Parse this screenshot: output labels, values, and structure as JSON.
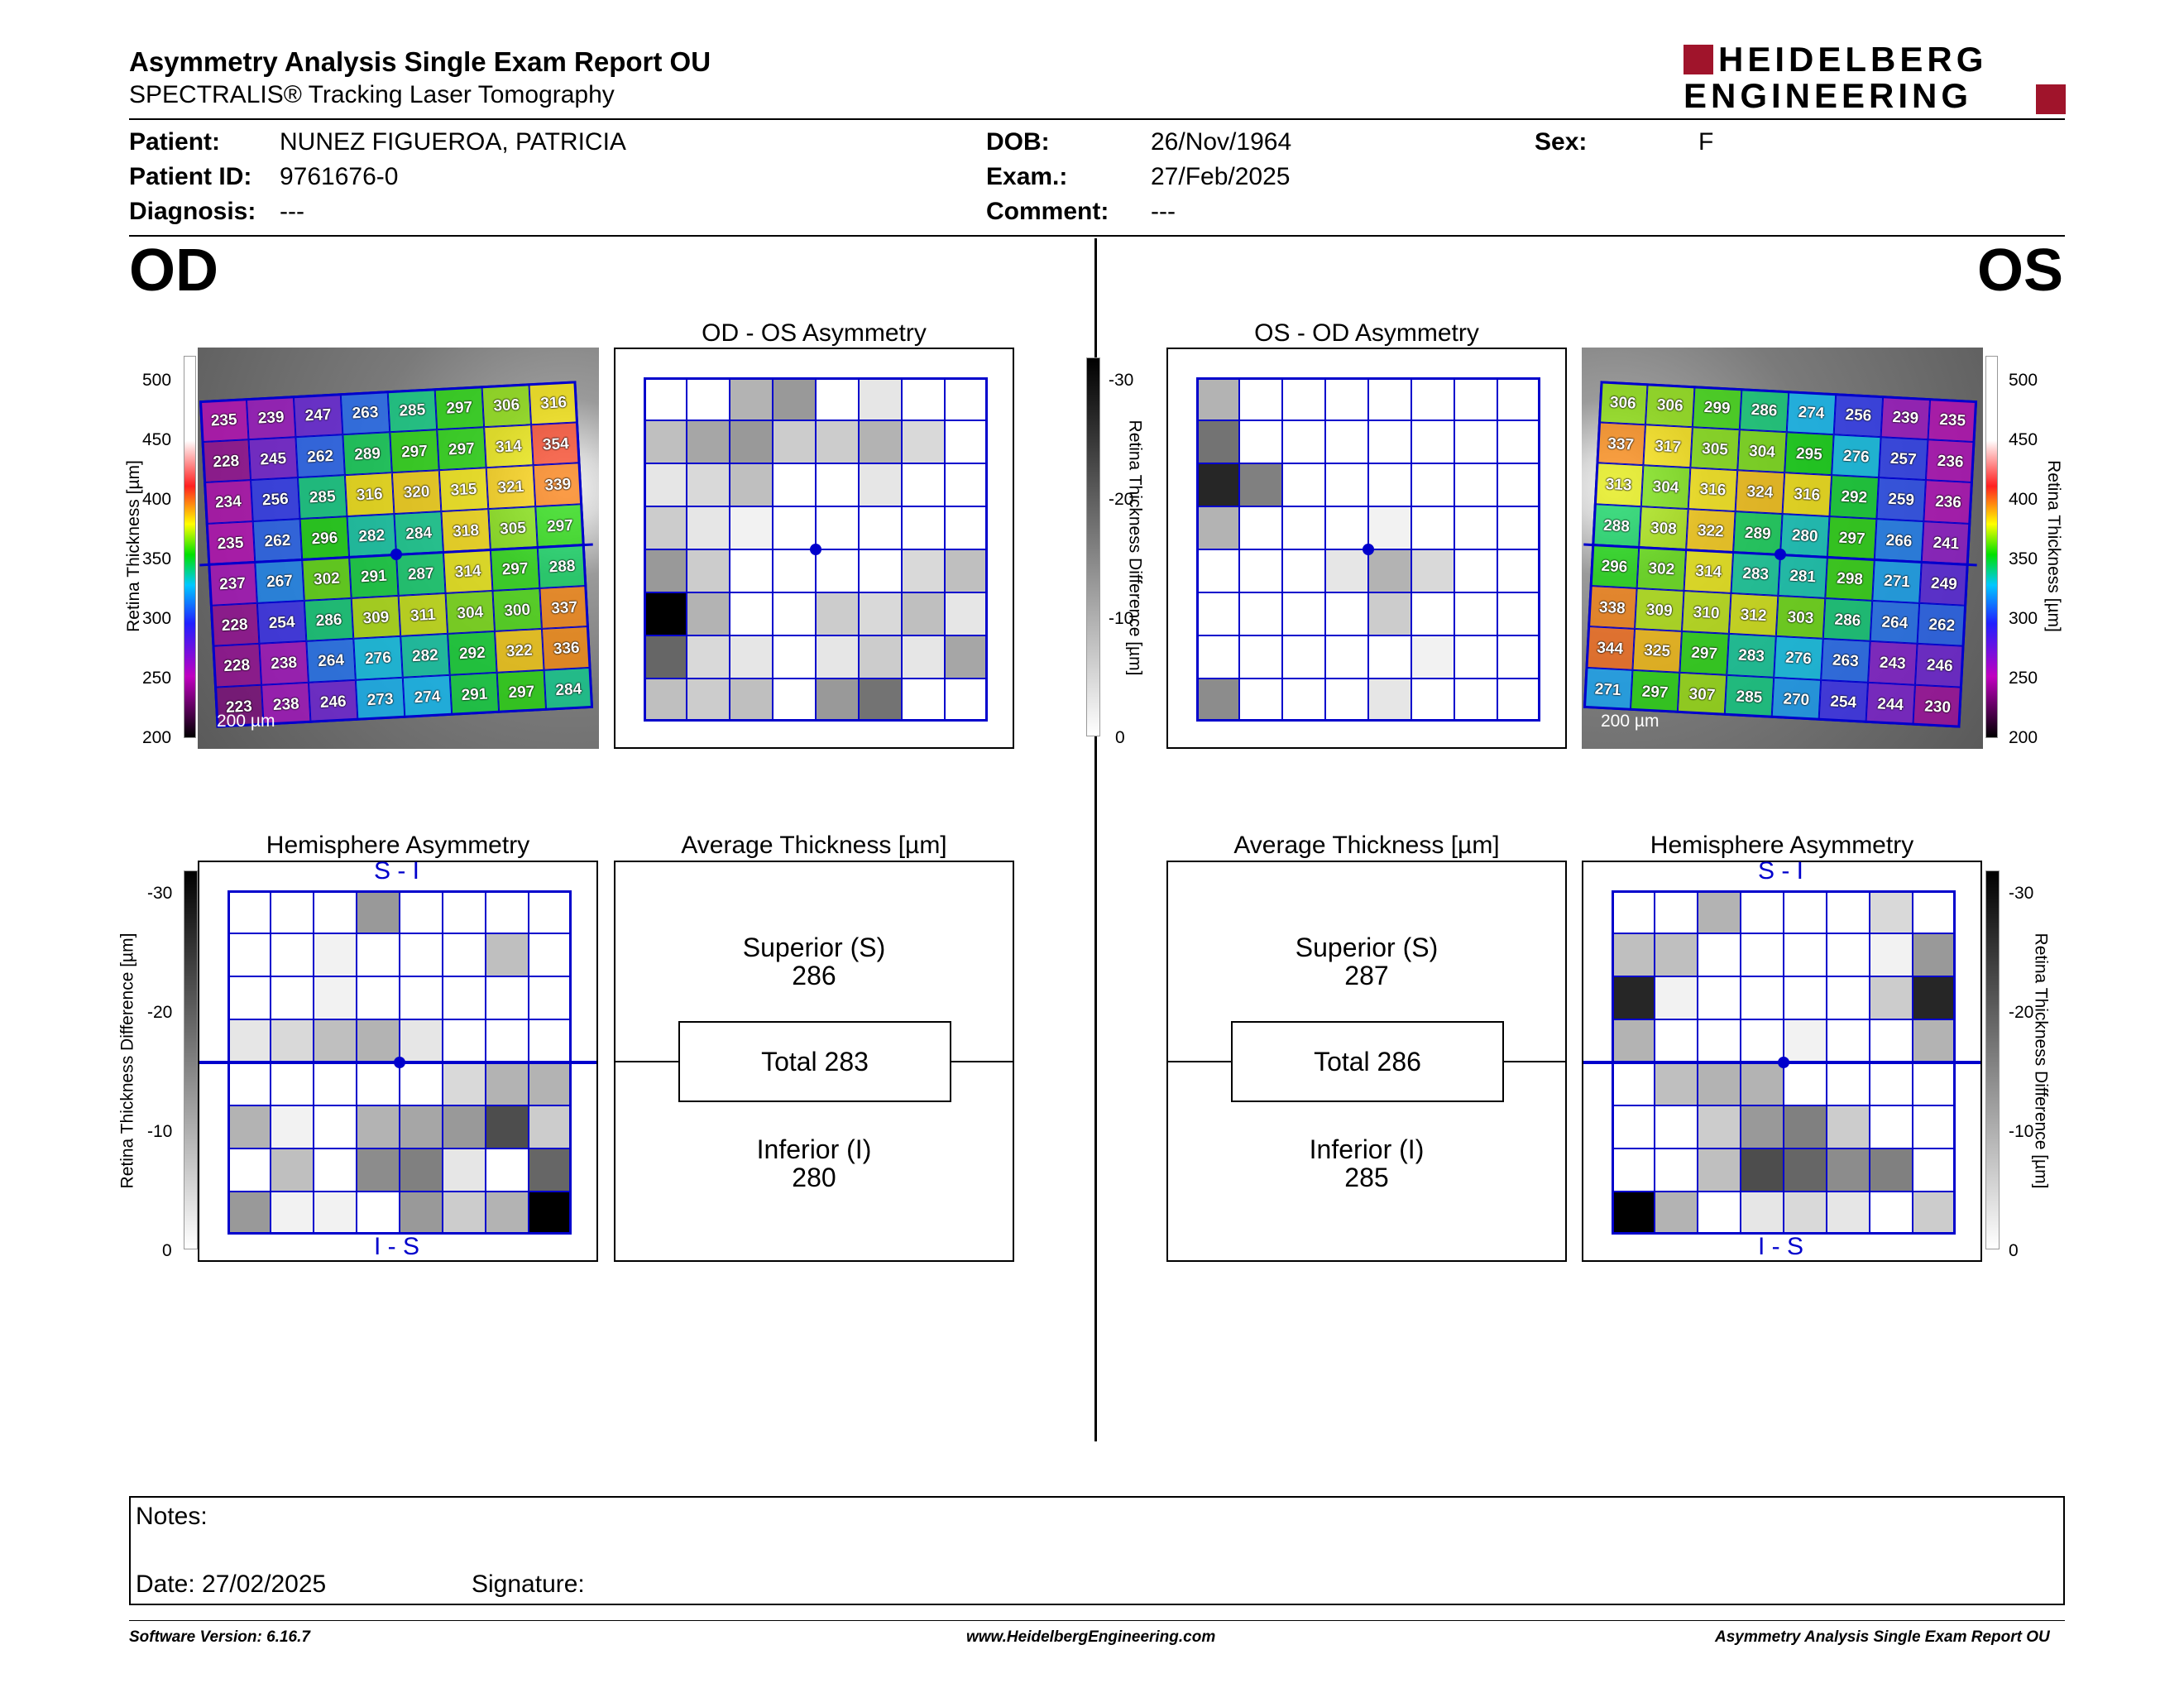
{
  "header": {
    "title": "Asymmetry Analysis Single Exam Report OU",
    "subtitle": "SPECTRALIS® Tracking Laser Tomography",
    "logo_line1": "HEIDELBERG",
    "logo_line2": "ENGINEERING"
  },
  "patient": {
    "patient_label": "Patient:",
    "patient_value": "NUNEZ FIGUEROA, PATRICIA",
    "id_label": "Patient ID:",
    "id_value": "9761676-0",
    "diag_label": "Diagnosis:",
    "diag_value": "---",
    "dob_label": "DOB:",
    "dob_value": "26/Nov/1964",
    "exam_label": "Exam.:",
    "exam_value": "27/Feb/2025",
    "comment_label": "Comment:",
    "comment_value": "---",
    "sex_label": "Sex:",
    "sex_value": "F"
  },
  "od": {
    "eye_label": "OD",
    "asym_title": "OD - OS Asymmetry",
    "hemi_title": "Hemisphere Asymmetry",
    "avg_title": "Average Thickness [µm]",
    "superior_label": "Superior (S)",
    "superior_value": "286",
    "total": "Total 283",
    "inferior_label": "Inferior (I)",
    "inferior_value": "280",
    "scale": "200 µm",
    "hemi_top": "S - I",
    "hemi_bottom": "I - S",
    "thickness": [
      [
        235,
        239,
        247,
        263,
        285,
        297,
        306,
        316
      ],
      [
        228,
        245,
        262,
        289,
        297,
        297,
        314,
        354
      ],
      [
        234,
        256,
        285,
        316,
        320,
        315,
        321,
        339
      ],
      [
        235,
        262,
        296,
        282,
        284,
        318,
        305,
        297
      ],
      [
        237,
        267,
        302,
        291,
        287,
        314,
        297,
        288
      ],
      [
        228,
        254,
        286,
        309,
        311,
        304,
        300,
        337
      ],
      [
        228,
        238,
        264,
        276,
        282,
        292,
        322,
        336
      ],
      [
        223,
        238,
        246,
        273,
        274,
        291,
        297,
        284
      ]
    ],
    "asym_grid": [
      [
        0,
        0,
        0.3,
        0.4,
        0,
        0.1,
        0,
        0
      ],
      [
        0.25,
        0.35,
        0.4,
        0.2,
        0.2,
        0.3,
        0.15,
        0
      ],
      [
        0.1,
        0.15,
        0.25,
        0,
        0,
        0.1,
        0,
        0
      ],
      [
        0.2,
        0.1,
        0.05,
        0,
        0,
        0,
        0,
        0
      ],
      [
        0.4,
        0.2,
        0,
        0,
        0,
        0,
        0.15,
        0.25
      ],
      [
        1.0,
        0.3,
        0,
        0,
        0.2,
        0.15,
        0.25,
        0.1
      ],
      [
        0.6,
        0.15,
        0.1,
        0,
        0.1,
        0.2,
        0.1,
        0.35
      ],
      [
        0.25,
        0.2,
        0.25,
        0,
        0.4,
        0.55,
        0,
        0
      ]
    ],
    "hemi_grid": [
      [
        0,
        0,
        0,
        0.4,
        0,
        0,
        0,
        0
      ],
      [
        0,
        0,
        0.05,
        0,
        0,
        0,
        0.25,
        0
      ],
      [
        0,
        0,
        0.05,
        0,
        0,
        0,
        0,
        0
      ],
      [
        0.1,
        0.15,
        0.25,
        0.3,
        0.1,
        0,
        0,
        0
      ],
      [
        0,
        0,
        0,
        0,
        0,
        0.15,
        0.3,
        0.3
      ],
      [
        0.3,
        0.05,
        0,
        0.3,
        0.35,
        0.4,
        0.7,
        0.2
      ],
      [
        0,
        0.25,
        0,
        0.45,
        0.5,
        0.1,
        0,
        0.6
      ],
      [
        0.4,
        0.05,
        0.05,
        0,
        0.4,
        0.2,
        0.3,
        1.0
      ]
    ]
  },
  "os": {
    "eye_label": "OS",
    "asym_title": "OS - OD Asymmetry",
    "hemi_title": "Hemisphere Asymmetry",
    "avg_title": "Average Thickness [µm]",
    "superior_label": "Superior (S)",
    "superior_value": "287",
    "total": "Total 286",
    "inferior_label": "Inferior (I)",
    "inferior_value": "285",
    "scale": "200 µm",
    "hemi_top": "S - I",
    "hemi_bottom": "I - S",
    "thickness": [
      [
        306,
        306,
        299,
        286,
        274,
        256,
        239,
        235
      ],
      [
        337,
        317,
        305,
        304,
        295,
        276,
        257,
        236
      ],
      [
        313,
        304,
        316,
        324,
        316,
        292,
        259,
        236
      ],
      [
        288,
        308,
        322,
        289,
        280,
        297,
        266,
        241
      ],
      [
        296,
        302,
        314,
        283,
        281,
        298,
        271,
        249
      ],
      [
        338,
        309,
        310,
        312,
        303,
        286,
        264,
        262
      ],
      [
        344,
        325,
        297,
        283,
        276,
        263,
        243,
        246
      ],
      [
        271,
        297,
        307,
        285,
        270,
        254,
        244,
        230
      ]
    ],
    "asym_grid": [
      [
        0.3,
        0,
        0,
        0,
        0,
        0,
        0,
        0
      ],
      [
        0.55,
        0,
        0,
        0,
        0,
        0,
        0,
        0
      ],
      [
        0.85,
        0.5,
        0,
        0,
        0,
        0,
        0,
        0
      ],
      [
        0.3,
        0,
        0,
        0,
        0.05,
        0,
        0,
        0
      ],
      [
        0,
        0,
        0,
        0.1,
        0.3,
        0.15,
        0,
        0
      ],
      [
        0,
        0,
        0,
        0,
        0.2,
        0,
        0,
        0
      ],
      [
        0,
        0,
        0,
        0,
        0,
        0.05,
        0,
        0
      ],
      [
        0.45,
        0,
        0,
        0,
        0.1,
        0,
        0,
        0
      ]
    ],
    "hemi_grid": [
      [
        0,
        0,
        0.3,
        0,
        0,
        0,
        0.15,
        0
      ],
      [
        0.25,
        0.25,
        0,
        0,
        0,
        0,
        0.05,
        0.4
      ],
      [
        0.85,
        0.05,
        0,
        0,
        0,
        0,
        0.2,
        0.85
      ],
      [
        0.3,
        0,
        0,
        0,
        0.05,
        0,
        0,
        0.3
      ],
      [
        0,
        0.25,
        0.3,
        0.3,
        0,
        0,
        0,
        0
      ],
      [
        0,
        0,
        0.2,
        0.4,
        0.5,
        0.2,
        0,
        0
      ],
      [
        0,
        0,
        0.25,
        0.7,
        0.6,
        0.45,
        0.5,
        0
      ],
      [
        1.0,
        0.3,
        0,
        0.1,
        0.15,
        0.1,
        0,
        0.2
      ]
    ]
  },
  "scales": {
    "thickness_label": "Retina  Thickness [µm]",
    "thickness_ticks": [
      "500",
      "450",
      "400",
      "350",
      "300",
      "250",
      "200"
    ],
    "diff_label": "Retina Thickness Difference [µm]",
    "diff_ticks": [
      "-30",
      "-20",
      "-10",
      "0"
    ]
  },
  "notes": {
    "notes_label": "Notes:",
    "date_label": "Date: 27/02/2025",
    "signature_label": "Signature:"
  },
  "footer": {
    "software": "Software Version: 6.16.7",
    "website": "www.HeidelbergEngineering.com",
    "report": "Asymmetry Analysis Single Exam Report OU"
  },
  "colors": {
    "grid_blue": "#0000cc",
    "logo_red": "#a0142b",
    "thickness_colormap": [
      "#ffffff",
      "#ffffff",
      "#ff3030",
      "#ff8800",
      "#ffff00",
      "#00e000",
      "#00c8ff",
      "#2020ff",
      "#c000c0",
      "#000000"
    ]
  }
}
